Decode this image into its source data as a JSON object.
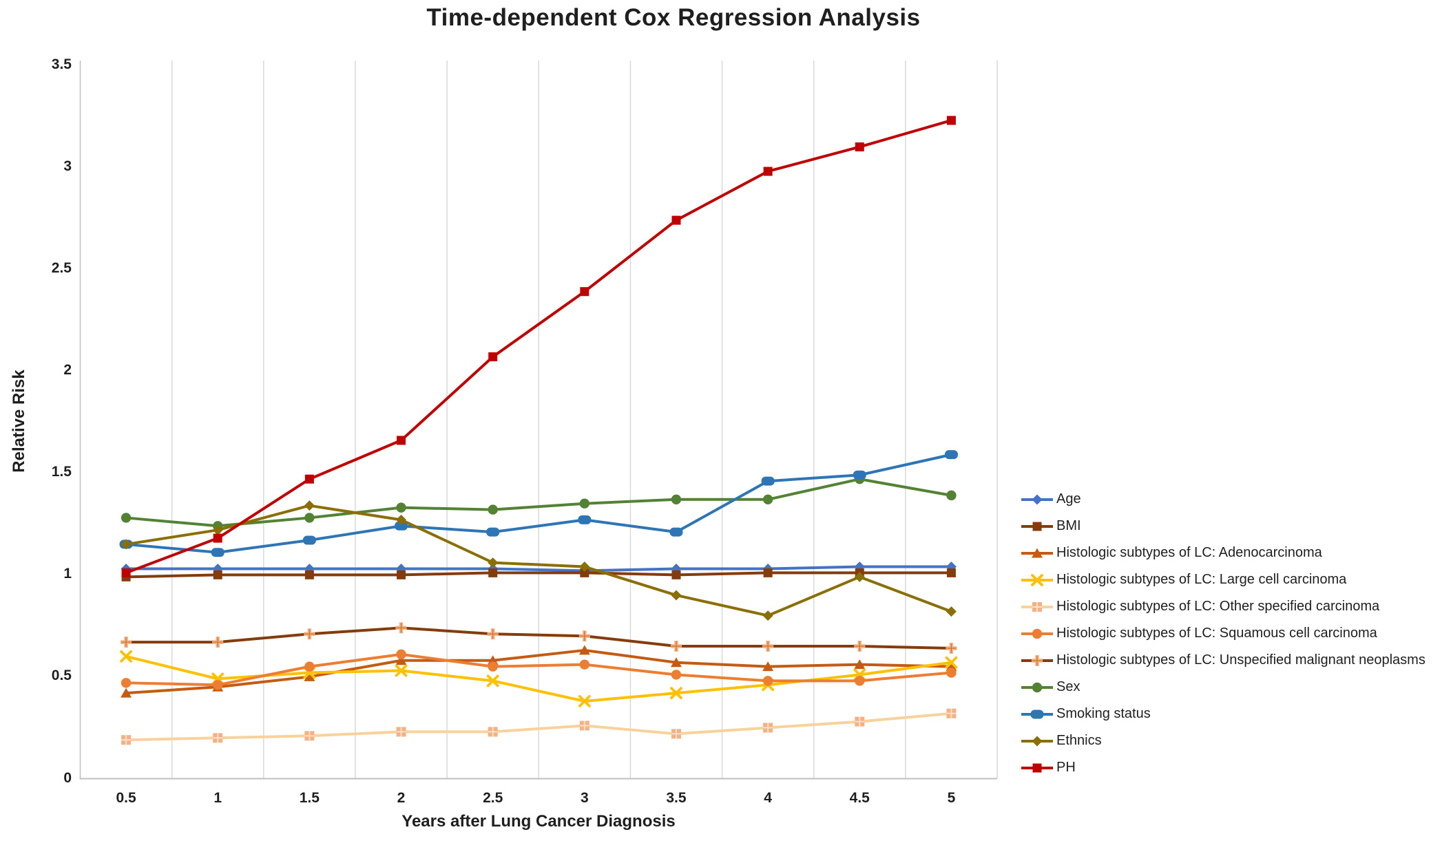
{
  "chart_data": {
    "type": "line",
    "title": "Time-dependent Cox Regression Analysis",
    "xlabel": "Years after Lung Cancer Diagnosis",
    "ylabel": "Relative Risk",
    "x": [
      0.5,
      1,
      1.5,
      2,
      2.5,
      3,
      3.5,
      4,
      4.5,
      5
    ],
    "x_tick_labels": [
      "0.5",
      "1",
      "1.5",
      "2",
      "2.5",
      "3",
      "3.5",
      "4",
      "4.5",
      "5"
    ],
    "ylim": [
      0,
      3.5
    ],
    "y_ticks": [
      0,
      0.5,
      1,
      1.5,
      2,
      2.5,
      3,
      3.5
    ],
    "y_tick_labels": [
      "0",
      "0.5",
      "1",
      "1.5",
      "2",
      "2.5",
      "3",
      "3.5"
    ],
    "grid": "vertical-only",
    "gridline_color": "#D9D9D9",
    "axis_line_color": "#BFBFBF",
    "legend_position": "right",
    "series": [
      {
        "name": "Age",
        "color": "#4472C4",
        "marker": "diamond",
        "values": [
          1.03,
          1.03,
          1.03,
          1.03,
          1.03,
          1.02,
          1.03,
          1.03,
          1.04,
          1.04
        ]
      },
      {
        "name": "BMI",
        "color": "#843C0C",
        "marker": "square",
        "values": [
          0.99,
          1.0,
          1.0,
          1.0,
          1.01,
          1.01,
          1.0,
          1.01,
          1.01,
          1.01
        ]
      },
      {
        "name": "Histologic subtypes of LC: Adenocarcinoma",
        "color": "#C55A11",
        "marker": "triangle",
        "values": [
          0.42,
          0.45,
          0.5,
          0.58,
          0.58,
          0.63,
          0.57,
          0.55,
          0.56,
          0.55
        ]
      },
      {
        "name": "Histologic subtypes of LC: Large cell carcinoma",
        "color": "#FFC000",
        "marker": "x",
        "values": [
          0.6,
          0.49,
          0.52,
          0.53,
          0.48,
          0.38,
          0.42,
          0.46,
          0.51,
          0.57
        ]
      },
      {
        "name": "Histologic subtypes of LC: Other specified carcinoma",
        "color": "#F9D29B",
        "marker": "square-hatch",
        "marker_color": "#F4B183",
        "values": [
          0.19,
          0.2,
          0.21,
          0.23,
          0.23,
          0.26,
          0.22,
          0.25,
          0.28,
          0.32
        ]
      },
      {
        "name": "Histologic subtypes of LC: Squamous cell carcinoma",
        "color": "#ED7D31",
        "marker": "circle",
        "values": [
          0.47,
          0.46,
          0.55,
          0.61,
          0.55,
          0.56,
          0.51,
          0.48,
          0.48,
          0.52
        ]
      },
      {
        "name": "Histologic subtypes of LC: Unspecified malignant neoplasms",
        "color": "#843C0C",
        "marker": "plus",
        "marker_color": "#F4B183",
        "values": [
          0.67,
          0.67,
          0.71,
          0.74,
          0.71,
          0.7,
          0.65,
          0.65,
          0.65,
          0.64
        ]
      },
      {
        "name": "Sex",
        "color": "#548235",
        "marker": "circle",
        "values": [
          1.28,
          1.24,
          1.28,
          1.33,
          1.32,
          1.35,
          1.37,
          1.37,
          1.47,
          1.39
        ]
      },
      {
        "name": "Smoking status",
        "color": "#2E75B6",
        "marker": "rounded-square",
        "values": [
          1.15,
          1.11,
          1.17,
          1.24,
          1.21,
          1.27,
          1.21,
          1.46,
          1.49,
          1.59
        ]
      },
      {
        "name": "Ethnics",
        "color": "#8A6F06",
        "marker": "diamond",
        "values": [
          1.15,
          1.22,
          1.34,
          1.27,
          1.06,
          1.04,
          0.9,
          0.8,
          0.99,
          0.82
        ]
      },
      {
        "name": "PH",
        "color": "#C00000",
        "marker": "square",
        "values": [
          1.01,
          1.18,
          1.47,
          1.66,
          2.07,
          2.39,
          2.74,
          2.98,
          3.1,
          3.23
        ]
      }
    ]
  }
}
